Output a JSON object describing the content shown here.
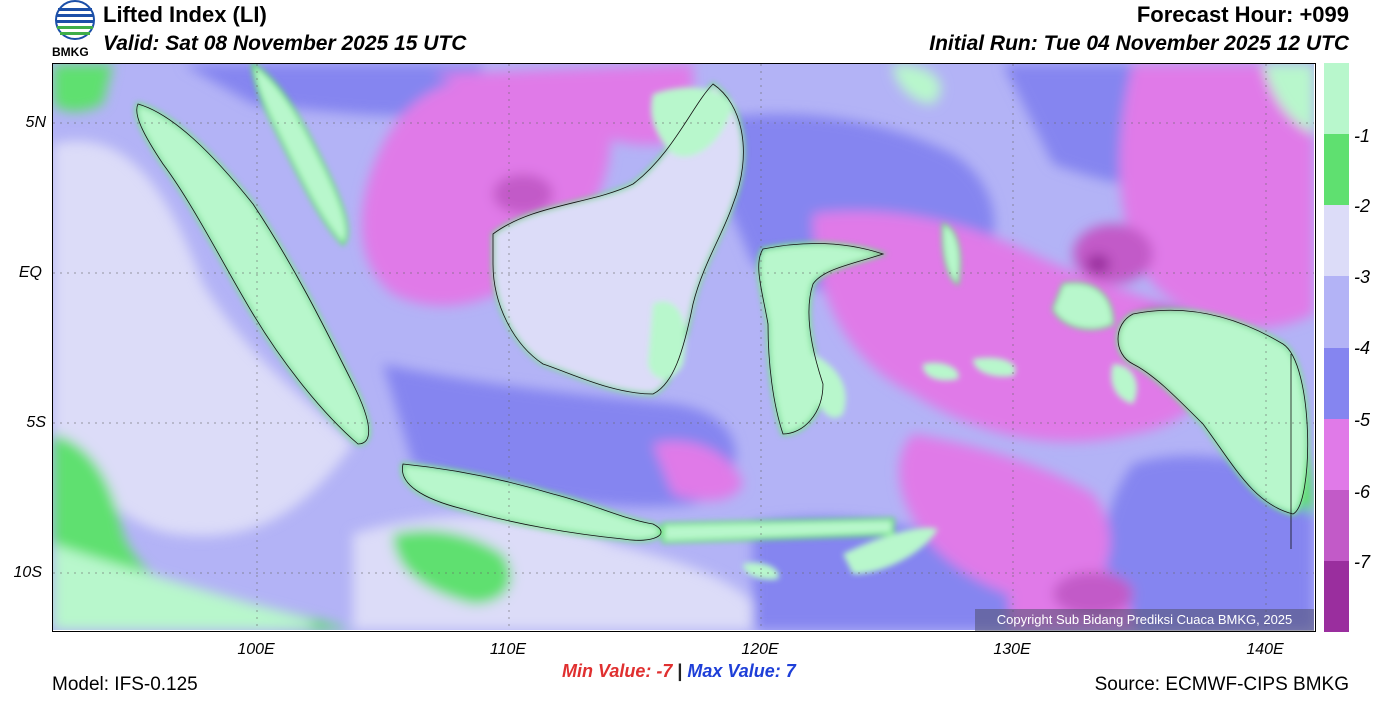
{
  "header": {
    "title": "Lifted Index (LI)",
    "valid": "Valid: Sat 08 November 2025 15 UTC",
    "forecast_hour": "Forecast Hour: +099",
    "initial_run": "Initial Run: Tue 04 November 2025 12 UTC",
    "logo_text": "BMKG"
  },
  "axes": {
    "lat_labels": [
      "5N",
      "EQ",
      "5S",
      "10S"
    ],
    "lon_labels": [
      "100E",
      "110E",
      "120E",
      "130E",
      "140E"
    ]
  },
  "colorbar": {
    "labels": [
      "-1",
      "-2",
      "-3",
      "-4",
      "-5",
      "-6",
      "-7"
    ],
    "colors": [
      "#b8f7cc",
      "#5fe070",
      "#dcdcf8",
      "#b3b3f6",
      "#8585f0",
      "#e07ae8",
      "#c25ac8",
      "#9a2e9e"
    ]
  },
  "footer": {
    "min_label": "Min Value:  -7",
    "separator": "|",
    "max_label": "Max Value:   7",
    "model": "Model: IFS-0.125",
    "source": "Source: ECMWF-CIPS BMKG",
    "copyright": "Copyright Sub Bidang Prediksi Cuaca BMKG, 2025"
  }
}
